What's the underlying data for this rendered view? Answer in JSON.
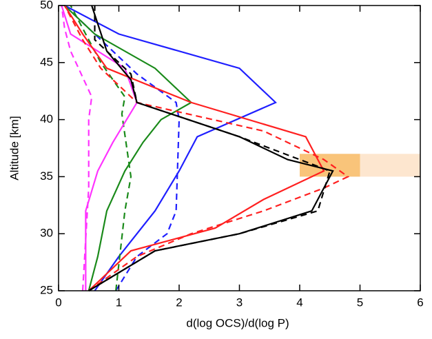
{
  "chart_data": {
    "type": "line",
    "xlabel": "d(log OCS)/d(log P)",
    "ylabel": "Altitude [km]",
    "xlim": [
      0,
      6
    ],
    "ylim": [
      25,
      50
    ],
    "xticks": [
      0,
      1,
      2,
      3,
      4,
      5,
      6
    ],
    "yticks": [
      25,
      30,
      35,
      40,
      45,
      50
    ],
    "bands": [
      {
        "x": [
          4,
          5
        ],
        "y": [
          35,
          37
        ],
        "color": "#f9c47a"
      },
      {
        "x": [
          5,
          6
        ],
        "y": [
          35,
          37
        ],
        "color": "#fde6cf"
      }
    ],
    "series": [
      {
        "color": "#1f1fff",
        "dash": false,
        "x": [
          0.6,
          1.0,
          1.6,
          2.0,
          2.3,
          3.6,
          3.0,
          1.0,
          0.1
        ],
        "y": [
          25,
          28,
          32,
          35.5,
          38.5,
          41.5,
          44.5,
          47.5,
          50
        ]
      },
      {
        "color": "#1f1fff",
        "dash": true,
        "x": [
          0.95,
          1.3,
          1.8,
          1.95,
          2.0,
          1.95,
          1.3,
          0.7,
          0.1
        ],
        "y": [
          25,
          28,
          30,
          32,
          40,
          41.5,
          44,
          47,
          50
        ]
      },
      {
        "color": "#1a8a1a",
        "dash": false,
        "x": [
          0.5,
          0.65,
          0.8,
          1.1,
          1.4,
          1.7,
          2.2,
          1.6,
          0.6,
          0.1
        ],
        "y": [
          25,
          28,
          32,
          35.5,
          38,
          40,
          41.5,
          44.5,
          47.5,
          50
        ]
      },
      {
        "color": "#1a8a1a",
        "dash": true,
        "x": [
          0.95,
          1.1,
          1.2,
          1.05,
          1.1,
          0.7,
          0.4,
          0.2
        ],
        "y": [
          25,
          32,
          35,
          40.5,
          42,
          45,
          48,
          50
        ]
      },
      {
        "color": "#ff33ff",
        "dash": false,
        "x": [
          0.45,
          0.45,
          0.65,
          0.9,
          1.3,
          1.1,
          0.2,
          0.05
        ],
        "y": [
          25,
          32,
          35.5,
          38,
          41.5,
          44.5,
          47.5,
          50
        ]
      },
      {
        "color": "#ff33ff",
        "dash": true,
        "x": [
          0.4,
          0.5,
          0.5,
          0.55,
          0.2,
          0.1,
          0.05
        ],
        "y": [
          25,
          34,
          40,
          42,
          46,
          48,
          50
        ]
      },
      {
        "color": "#ff2020",
        "dash": false,
        "x": [
          0.5,
          1.2,
          2.6,
          3.4,
          4.4,
          4.1,
          2.2,
          0.8,
          0.4,
          0.1
        ],
        "y": [
          25,
          28.5,
          30.5,
          33,
          35.5,
          38.5,
          41.5,
          44.5,
          47.5,
          50
        ]
      },
      {
        "color": "#ff2020",
        "dash": true,
        "x": [
          0.5,
          1.3,
          2.2,
          3.4,
          4.4,
          4.8,
          4.4,
          3.4,
          1.3,
          0.7,
          0.4,
          0.1
        ],
        "y": [
          25,
          28,
          30,
          32,
          34,
          35,
          36.5,
          39,
          41.5,
          44.5,
          47,
          50
        ]
      },
      {
        "color": "#000000",
        "dash": false,
        "x": [
          0.5,
          1.6,
          3.0,
          4.2,
          4.55,
          3.8,
          3.0,
          1.3,
          1.2,
          0.8,
          0.55
        ],
        "y": [
          25,
          28.5,
          30,
          32,
          35.5,
          36.5,
          38.5,
          41.5,
          43.5,
          46,
          50
        ]
      },
      {
        "color": "#000000",
        "dash": true,
        "x": [
          0.5,
          1.6,
          3.0,
          4.3,
          4.5,
          3.0,
          1.3,
          1.2,
          0.6,
          0.6
        ],
        "y": [
          25,
          28.5,
          30,
          32,
          35.5,
          38.5,
          41.5,
          44,
          47,
          50
        ]
      }
    ]
  }
}
